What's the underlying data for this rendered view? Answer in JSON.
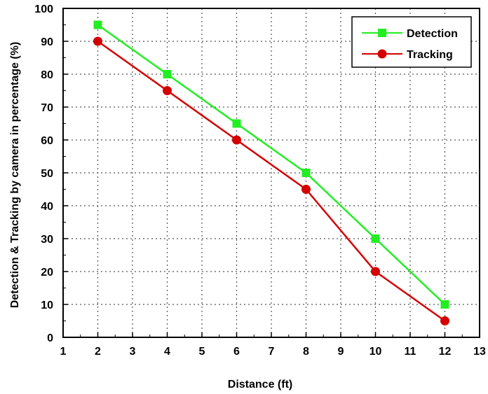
{
  "chart_data": {
    "type": "line",
    "title": "",
    "xlabel": "Distance (ft)",
    "ylabel": "Detection & Tracking by camera in percentage (%)",
    "xlim": [
      1,
      13
    ],
    "ylim": [
      0,
      100
    ],
    "x_ticks": [
      "1",
      "2",
      "3",
      "4",
      "5",
      "6",
      "7",
      "8",
      "9",
      "10",
      "11",
      "12",
      "13"
    ],
    "y_ticks": [
      "0",
      "10",
      "20",
      "30",
      "40",
      "50",
      "60",
      "70",
      "80",
      "90",
      "100"
    ],
    "grid": true,
    "legend_position": "top-right",
    "x": [
      2,
      4,
      6,
      8,
      10,
      12
    ],
    "series": [
      {
        "name": "Detection",
        "values": [
          95,
          80,
          65,
          50,
          30,
          10
        ],
        "color": "#22ee22",
        "marker": "square"
      },
      {
        "name": "Tracking",
        "values": [
          90,
          75,
          60,
          45,
          20,
          5
        ],
        "color": "#d40000",
        "marker": "circle"
      }
    ]
  }
}
